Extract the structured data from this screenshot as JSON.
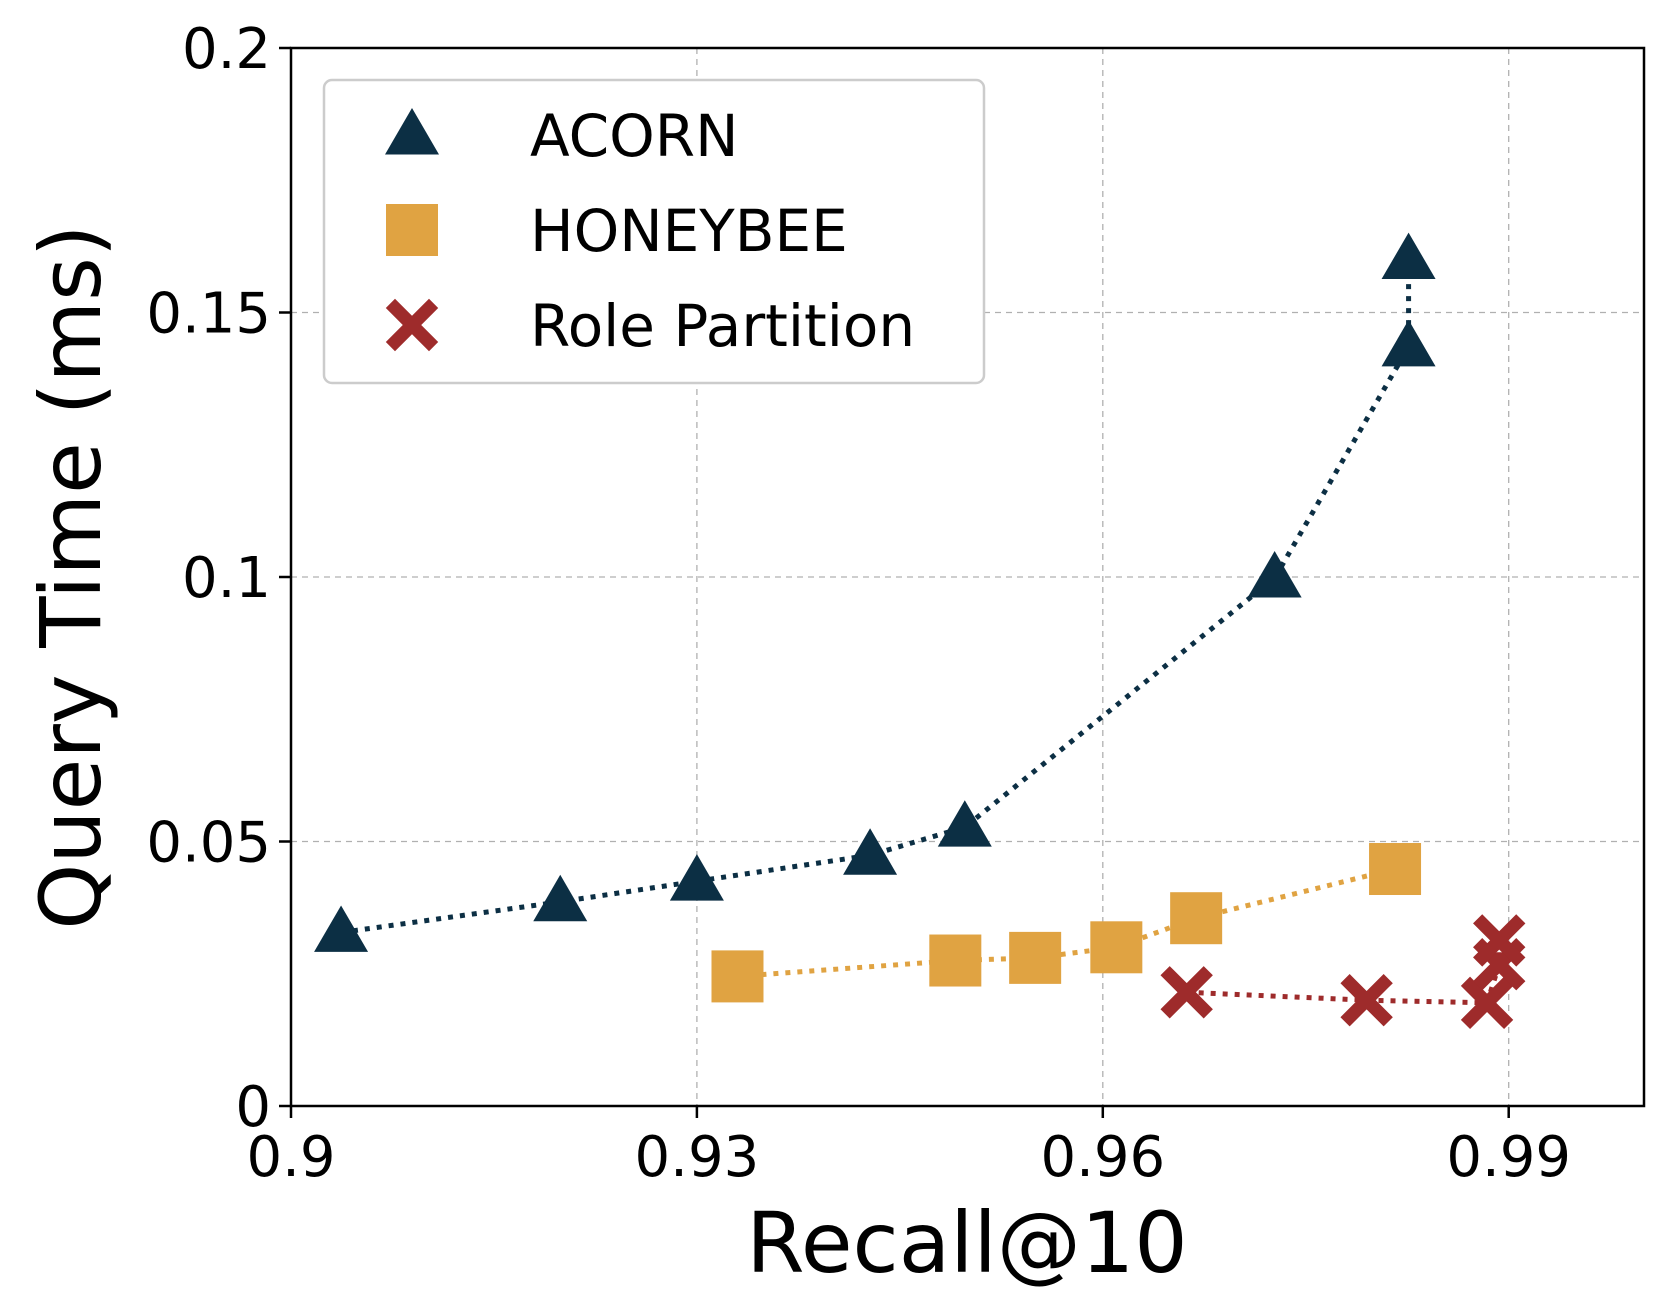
{
  "chart_data": {
    "type": "line",
    "title": "",
    "xlabel": "Recall@10",
    "ylabel": "Query Time (ms)",
    "xlim": [
      0.9,
      1.0
    ],
    "ylim": [
      0,
      0.2
    ],
    "xticks": [
      0.9,
      0.93,
      0.96,
      0.99
    ],
    "xtick_labels": [
      "0.9",
      "0.93",
      "0.96",
      "0.99"
    ],
    "yticks": [
      0,
      0.05,
      0.1,
      0.15,
      0.2
    ],
    "ytick_labels": [
      "0",
      "0.05",
      "0.1",
      "0.15",
      "0.2"
    ],
    "grid": true,
    "legend_position": "top-left",
    "series": [
      {
        "name": "ACORN",
        "marker": "triangle",
        "color": "#0c2f44",
        "x": [
          0.9037,
          0.9199,
          0.93,
          0.9428,
          0.9498,
          0.9727,
          0.9826,
          0.9826
        ],
        "y": [
          0.0328,
          0.0386,
          0.0425,
          0.0474,
          0.0527,
          0.0998,
          0.1435,
          0.16
        ]
      },
      {
        "name": "HONEYBEE",
        "marker": "square",
        "color": "#e0a342",
        "x": [
          0.933,
          0.9491,
          0.955,
          0.961,
          0.9669,
          0.9816
        ],
        "y": [
          0.0245,
          0.0275,
          0.028,
          0.03,
          0.0355,
          0.0448
        ]
      },
      {
        "name": "Role Partition",
        "marker": "x",
        "color": "#9e2b2b",
        "x": [
          0.9662,
          0.9795,
          0.9884,
          0.9893,
          0.9893
        ],
        "y": [
          0.0215,
          0.02,
          0.0195,
          0.0268,
          0.0313
        ]
      }
    ]
  }
}
